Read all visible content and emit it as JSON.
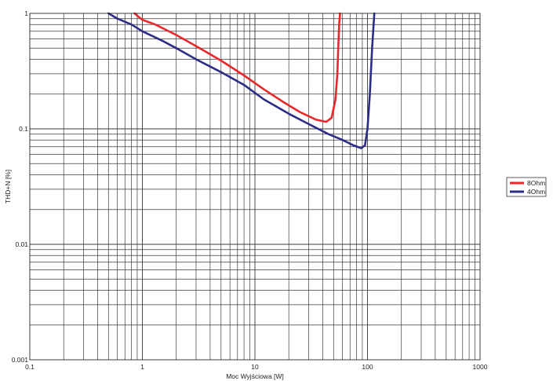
{
  "chart_data": {
    "type": "line",
    "title": "",
    "xlabel": "Moc Wyjściowa [W]",
    "ylabel": "THD+N [%]",
    "x_scale": "log",
    "y_scale": "log",
    "xlim": [
      0.1,
      1000
    ],
    "ylim": [
      0.001,
      1
    ],
    "grid": true,
    "legend_position": "right",
    "x_ticks": [
      "0.1",
      "1",
      "10",
      "100",
      "1000"
    ],
    "y_ticks": [
      "0.001",
      "0.01",
      "0.1",
      "1"
    ],
    "series": [
      {
        "name": "8Ohm",
        "color": "#e8282b",
        "x": [
          0.85,
          1.0,
          1.3,
          2,
          3,
          5,
          8,
          12,
          18,
          25,
          35,
          43,
          48,
          52,
          54,
          55,
          56,
          57
        ],
        "y": [
          1.0,
          0.88,
          0.8,
          0.65,
          0.52,
          0.39,
          0.29,
          0.22,
          0.17,
          0.14,
          0.12,
          0.115,
          0.125,
          0.18,
          0.3,
          0.5,
          0.8,
          1.0
        ]
      },
      {
        "name": "4Ohm",
        "color": "#2b2d86",
        "x": [
          0.5,
          0.6,
          0.8,
          1.0,
          1.5,
          2,
          3,
          5,
          8,
          12,
          20,
          30,
          45,
          60,
          75,
          88,
          95,
          100,
          105,
          110,
          115
        ],
        "y": [
          1.0,
          0.9,
          0.8,
          0.7,
          0.58,
          0.5,
          0.4,
          0.31,
          0.24,
          0.18,
          0.135,
          0.11,
          0.09,
          0.08,
          0.072,
          0.068,
          0.072,
          0.1,
          0.2,
          0.5,
          1.0
        ]
      }
    ]
  }
}
